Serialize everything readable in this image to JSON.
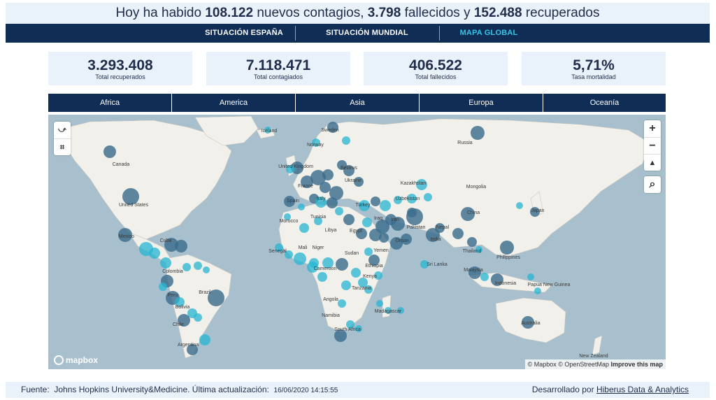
{
  "headline": {
    "prefix": "Hoy ha habido ",
    "new_cases": "108.122",
    "mid1": " nuevos contagios, ",
    "deaths": "3.798",
    "mid2": " fallecidos y ",
    "recovered": "152.488",
    "suffix": " recuperados"
  },
  "nav": {
    "items": [
      {
        "label": "SITUACIÓN ESPAÑA",
        "active": false
      },
      {
        "label": "SITUACIÓN MUNDIAL",
        "active": false
      },
      {
        "label": "MAPA GLOBAL",
        "active": true
      }
    ]
  },
  "kpis": [
    {
      "value": "3.293.408",
      "label": "Total recuperados"
    },
    {
      "value": "7.118.471",
      "label": "Total contagiados"
    },
    {
      "value": "406.522",
      "label": "Total fallecidos"
    },
    {
      "value": "5,71%",
      "label": "Tasa mortalidad"
    }
  ],
  "regions": [
    "Africa",
    "America",
    "Asia",
    "Europa",
    "Oceanía"
  ],
  "map": {
    "labels": [
      "Iceland",
      "Sweden",
      "Norway",
      "Canada",
      "United Kingdom",
      "Belarus",
      "Ukraine",
      "France",
      "Spain",
      "Italy",
      "Kazakhstan",
      "Mongolia",
      "Russia",
      "United States",
      "Turkey",
      "Uzbekistan",
      "Tunisia",
      "Morocco",
      "Iraq",
      "Iran",
      "Libya",
      "Egypt",
      "China",
      "Japan",
      "Pakistan",
      "Nepal",
      "Oman",
      "India",
      "Mexico",
      "Cuba",
      "Mali",
      "Niger",
      "Senegal",
      "Sudan",
      "Yemen",
      "Thailand",
      "Philippines",
      "Sri Lanka",
      "Cameroon",
      "Ethiopia",
      "Malaysia",
      "Colombia",
      "Kenya",
      "Indonesia",
      "Papua New Guinea",
      "Peru",
      "Brazil",
      "Tanzania",
      "Angola",
      "Bolivia",
      "Madagascar",
      "Namibia",
      "Chile",
      "South Africa",
      "Australia",
      "Argentina",
      "New Zealand"
    ],
    "attribution": {
      "mapbox": "© Mapbox",
      "osm": "© OpenStreetMap",
      "improve": "Improve this map"
    },
    "logo": "mapbox",
    "controls": {
      "zoom_in": "+",
      "zoom_out": "−",
      "compass": "▲",
      "search": "⌕"
    },
    "colors": {
      "water": "#a8bfcd",
      "land": "#f1f0ea",
      "bubble_dark": "#3c6c8c",
      "bubble_light": "#25b6d2"
    }
  },
  "footer": {
    "source_label": "Fuente:",
    "source": "Johns Hopkins University&Medicine. Última actualización:",
    "updated": "16/06/2020 14:15:55",
    "dev_label": "Desarrollado por",
    "dev_link": "Hiberus Data & Analytics"
  }
}
